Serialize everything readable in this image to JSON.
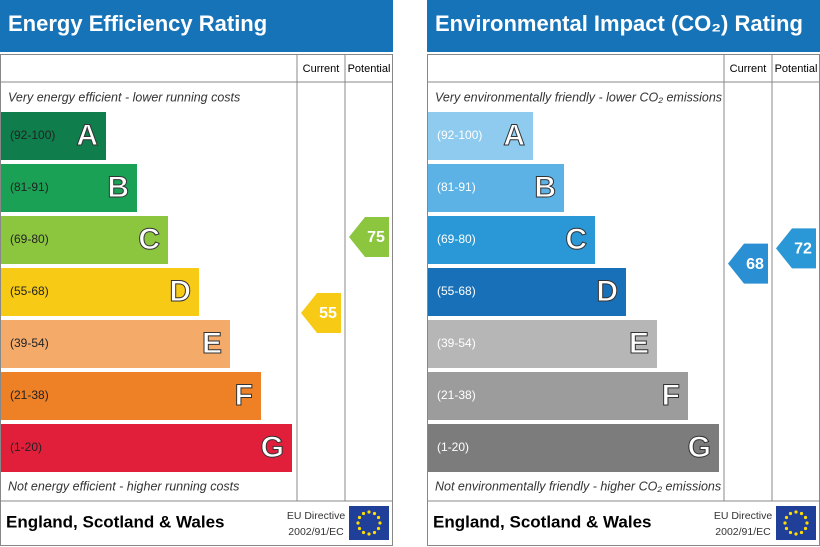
{
  "panels": [
    {
      "title": "Energy Efficiency Rating",
      "columns": [
        "Current",
        "Potential"
      ],
      "top_note": "Very energy efficient - lower running costs",
      "bottom_note": "Not energy efficient - higher running costs",
      "bands": [
        {
          "range": "(92-100)",
          "letter": "A",
          "color": "#0f7d4c"
        },
        {
          "range": "(81-91)",
          "letter": "B",
          "color": "#1aa155"
        },
        {
          "range": "(69-80)",
          "letter": "C",
          "color": "#8cc63f"
        },
        {
          "range": "(55-68)",
          "letter": "D",
          "color": "#f7cb15"
        },
        {
          "range": "(39-54)",
          "letter": "E",
          "color": "#f4ab6a"
        },
        {
          "range": "(21-38)",
          "letter": "F",
          "color": "#ee8125"
        },
        {
          "range": "(1-20)",
          "letter": "G",
          "color": "#e21f3b"
        }
      ],
      "range_text_color": "#222222",
      "current": 55,
      "current_color": "#f7cb15",
      "potential": 75,
      "potential_color": "#8cc63f",
      "footer": "England, Scotland & Wales",
      "directive": [
        "EU Directive",
        "2002/91/EC"
      ]
    },
    {
      "title": "Environmental Impact (CO₂) Rating",
      "columns": [
        "Current",
        "Potential"
      ],
      "top_note": "Very environmentally friendly - lower CO₂ emissions",
      "bottom_note": "Not environmentally friendly - higher CO₂ emissions",
      "bands": [
        {
          "range": "(92-100)",
          "letter": "A",
          "color": "#8ecbee"
        },
        {
          "range": "(81-91)",
          "letter": "B",
          "color": "#5cb2e5"
        },
        {
          "range": "(69-80)",
          "letter": "C",
          "color": "#2a98d6"
        },
        {
          "range": "(55-68)",
          "letter": "D",
          "color": "#1871b8"
        },
        {
          "range": "(39-54)",
          "letter": "E",
          "color": "#b6b6b6"
        },
        {
          "range": "(21-38)",
          "letter": "F",
          "color": "#9c9c9c"
        },
        {
          "range": "(1-20)",
          "letter": "G",
          "color": "#7c7c7c"
        }
      ],
      "range_text_color": "#ffffff",
      "current": 68,
      "current_color": "#2a8fd3",
      "potential": 72,
      "potential_color": "#2a98d6",
      "footer": "England, Scotland & Wales",
      "directive": [
        "EU Directive",
        "2002/91/EC"
      ]
    }
  ]
}
